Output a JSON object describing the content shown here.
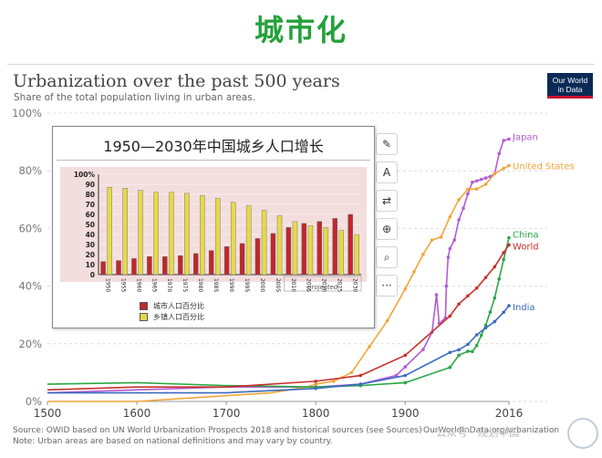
{
  "slide_title": "城市化",
  "logo": {
    "line1": "Our World",
    "line2": "in Data"
  },
  "toolbar": {
    "icons": [
      "edit-icon",
      "text-icon",
      "convert-icon",
      "zoom-icon",
      "translate-icon",
      "more-icon"
    ],
    "glyphs": [
      "✎",
      "A",
      "⇄",
      "⊕",
      "⌕",
      "···"
    ]
  },
  "chart_data": [
    {
      "type": "line",
      "title": "Urbanization over the past 500 years",
      "subtitle": "Share of the total population living in urban areas.",
      "ylim": [
        0,
        100
      ],
      "y_ticks": [
        "0%",
        "20%",
        "40%",
        "60%",
        "80%",
        "100%"
      ],
      "xlim": [
        1500,
        2016
      ],
      "x_ticks": [
        "1500",
        "1600",
        "1700",
        "1800",
        "1900",
        "2016"
      ],
      "grid": true,
      "series": [
        {
          "name": "Japan",
          "color": "#b45ad6",
          "points": [
            [
              1500,
              3
            ],
            [
              1600,
              4
            ],
            [
              1700,
              5
            ],
            [
              1800,
              5
            ],
            [
              1850,
              6
            ],
            [
              1890,
              9
            ],
            [
              1900,
              12
            ],
            [
              1920,
              18
            ],
            [
              1930,
              24
            ],
            [
              1935,
              37
            ],
            [
              1938,
              27
            ],
            [
              1945,
              29
            ],
            [
              1946,
              40
            ],
            [
              1948,
              50
            ],
            [
              1950,
              53
            ],
            [
              1955,
              56
            ],
            [
              1960,
              63
            ],
            [
              1965,
              67
            ],
            [
              1970,
              72
            ],
            [
              1975,
              76
            ],
            [
              1980,
              76.5
            ],
            [
              1985,
              77
            ],
            [
              1990,
              77.5
            ],
            [
              1995,
              78
            ],
            [
              2000,
              79
            ],
            [
              2005,
              86
            ],
            [
              2010,
              90.5
            ],
            [
              2016,
              91
            ]
          ]
        },
        {
          "name": "United States",
          "color": "#f4a43a",
          "points": [
            [
              1500,
              0
            ],
            [
              1600,
              0
            ],
            [
              1700,
              2
            ],
            [
              1750,
              3
            ],
            [
              1790,
              5
            ],
            [
              1800,
              6
            ],
            [
              1820,
              7
            ],
            [
              1840,
              10
            ],
            [
              1860,
              19
            ],
            [
              1880,
              28
            ],
            [
              1900,
              39
            ],
            [
              1910,
              45
            ],
            [
              1920,
              51
            ],
            [
              1930,
              56
            ],
            [
              1940,
              57
            ],
            [
              1950,
              64
            ],
            [
              1960,
              70
            ],
            [
              1970,
              73.6
            ],
            [
              1980,
              73.7
            ],
            [
              1990,
              75.3
            ],
            [
              2000,
              79
            ],
            [
              2010,
              80.8
            ],
            [
              2016,
              81.8
            ]
          ]
        },
        {
          "name": "China",
          "color": "#27a844",
          "points": [
            [
              1500,
              6
            ],
            [
              1600,
              6.5
            ],
            [
              1700,
              5.5
            ],
            [
              1800,
              5
            ],
            [
              1850,
              5.5
            ],
            [
              1900,
              6.5
            ],
            [
              1950,
              11.8
            ],
            [
              1960,
              16
            ],
            [
              1970,
              17.4
            ],
            [
              1975,
              17.3
            ],
            [
              1980,
              19.4
            ],
            [
              1985,
              22.9
            ],
            [
              1990,
              26.4
            ],
            [
              1995,
              31
            ],
            [
              2000,
              35.9
            ],
            [
              2005,
              42.5
            ],
            [
              2010,
              49.2
            ],
            [
              2016,
              56.8
            ]
          ]
        },
        {
          "name": "World",
          "color": "#c8302c",
          "points": [
            [
              1500,
              4
            ],
            [
              1600,
              5
            ],
            [
              1700,
              5
            ],
            [
              1800,
              7
            ],
            [
              1850,
              9
            ],
            [
              1900,
              16
            ],
            [
              1950,
              29.6
            ],
            [
              1960,
              33.8
            ],
            [
              1970,
              36.6
            ],
            [
              1980,
              39.3
            ],
            [
              1990,
              43
            ],
            [
              2000,
              46.7
            ],
            [
              2010,
              51.6
            ],
            [
              2016,
              54.3
            ]
          ]
        },
        {
          "name": "India",
          "color": "#3a6bbf",
          "points": [
            [
              1500,
              3
            ],
            [
              1600,
              3
            ],
            [
              1700,
              3
            ],
            [
              1800,
              4.5
            ],
            [
              1850,
              6
            ],
            [
              1900,
              9
            ],
            [
              1950,
              17
            ],
            [
              1960,
              17.9
            ],
            [
              1970,
              19.8
            ],
            [
              1980,
              23.1
            ],
            [
              1990,
              25.5
            ],
            [
              2000,
              27.7
            ],
            [
              2010,
              30.9
            ],
            [
              2016,
              33.2
            ]
          ]
        }
      ]
    },
    {
      "type": "bar",
      "title": "1950—2030年中国城乡人口增长",
      "categories": [
        "1950",
        "1955",
        "1960",
        "1965",
        "1970",
        "1975",
        "1980",
        "1985",
        "1990",
        "1995",
        "2000",
        "2005",
        "2010",
        "2015",
        "2020",
        "2025",
        "2030"
      ],
      "ylim": [
        0,
        100
      ],
      "y_ticks": [
        "0",
        "10",
        "20",
        "30",
        "40",
        "50",
        "60",
        "70",
        "80",
        "90",
        "100%"
      ],
      "projected_label": "projected",
      "series": [
        {
          "name": "城市人口百分比",
          "color": "#c0282b",
          "values": [
            13,
            14,
            16,
            18,
            18,
            19,
            21,
            24,
            28,
            31,
            36,
            41,
            47,
            51,
            53,
            56,
            60
          ]
        },
        {
          "name": "乡镇人口百分比",
          "color": "#e5d94a",
          "values": [
            87,
            86,
            84,
            82,
            82,
            81,
            79,
            76,
            72,
            69,
            64,
            59,
            53,
            49,
            47,
            44,
            40
          ]
        }
      ]
    }
  ],
  "footer": {
    "source": "Source: OWID based on UN World Urbanization Prospects 2018 and historical sources (see Sources)",
    "url": "OurWorldInData.org/urbanization",
    "note": "Note: Urban areas are based on national definitions and may vary by country."
  },
  "watermark": "公众号 · 规划中国"
}
